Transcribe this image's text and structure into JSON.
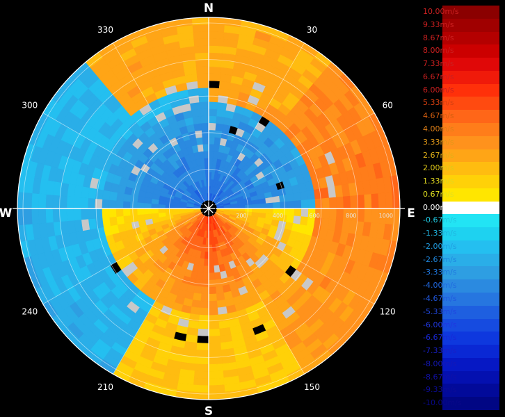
{
  "chart_data": {
    "type": "heatmap",
    "subtype": "polar-radial-velocity (PPI)",
    "cardinal_labels": {
      "N": "N",
      "E": "E",
      "S": "S",
      "W": "W"
    },
    "azimuth_labels": [
      "30",
      "60",
      "120",
      "150",
      "210",
      "240",
      "300",
      "330"
    ],
    "azimuth_label_angles": [
      30,
      60,
      120,
      150,
      210,
      240,
      300,
      330
    ],
    "range_labels": [
      "200",
      "400",
      "600",
      "800",
      "1000"
    ],
    "range_values": [
      200,
      400,
      600,
      800,
      1000
    ],
    "range_max": 1000,
    "grid": true,
    "legend_position": "right",
    "colorbar": {
      "labels": [
        "10.00m/s",
        "9.33m/s",
        "8.67m/s",
        "8.00m/s",
        "7.33m/s",
        "6.67m/s",
        "6.00m/s",
        "5.33m/s",
        "4.67m/s",
        "4.00m/s",
        "3.33m/s",
        "2.67m/s",
        "2.00m/s",
        "1.33m/s",
        "0.67m/s",
        "0.00m/s",
        "-0.67m/s",
        "-1.33m/s",
        "-2.00m/s",
        "-2.67m/s",
        "-3.33m/s",
        "-4.00m/s",
        "-4.67m/s",
        "-5.33m/s",
        "-6.00m/s",
        "-6.67m/s",
        "-7.33m/s",
        "-8.00m/s",
        "-8.67m/s",
        "-9.33m/s",
        "-10.00m/s"
      ],
      "values": [
        10.0,
        9.33,
        8.67,
        8.0,
        7.33,
        6.67,
        6.0,
        5.33,
        4.67,
        4.0,
        3.33,
        2.67,
        2.0,
        1.33,
        0.67,
        0.0,
        -0.67,
        -1.33,
        -2.0,
        -2.67,
        -3.33,
        -4.0,
        -4.67,
        -5.33,
        -6.0,
        -6.67,
        -7.33,
        -8.0,
        -8.67,
        -9.33,
        -10.0
      ],
      "colors": [
        "#8b0000",
        "#a00000",
        "#b40000",
        "#cc0000",
        "#e00808",
        "#f01a0a",
        "#ff300a",
        "#ff4a10",
        "#ff6618",
        "#ff7d1a",
        "#ff921c",
        "#ffa516",
        "#ffbc10",
        "#ffd108",
        "#ffe600",
        "#ffffff",
        "#22e4f4",
        "#1ed2f0",
        "#24bff0",
        "#2aaee8",
        "#2e9ee2",
        "#2b8ae0",
        "#2676e0",
        "#1e5fe0",
        "#164be0",
        "#0e38de",
        "#0a28d4",
        "#0618c4",
        "#0410b0",
        "#020a9a",
        "#010684"
      ],
      "label_colors": [
        "#cc2020",
        "#cc2020",
        "#cc2020",
        "#cc2020",
        "#cc2020",
        "#cc2020",
        "#cc2020",
        "#d84010",
        "#d86010",
        "#e08018",
        "#e09818",
        "#e0b018",
        "#e0c818",
        "#e0d820",
        "#e0e020",
        "#ffffff",
        "#20c8e0",
        "#20b4e0",
        "#209ce0",
        "#2088e0",
        "#2078e0",
        "#2068e0",
        "#2058e0",
        "#2048e0",
        "#2038e0",
        "#1828d8",
        "#1820c8",
        "#1418b8",
        "#1010a8",
        "#0c0c98",
        "#080888"
      ]
    },
    "approximate_field": {
      "description_levels": "north/east half-ring positive (toward red/orange), south sector positive near center, west/north-west negative (blue)",
      "center_velocity_north": -4.0,
      "center_velocity_south": 4.0
    }
  }
}
